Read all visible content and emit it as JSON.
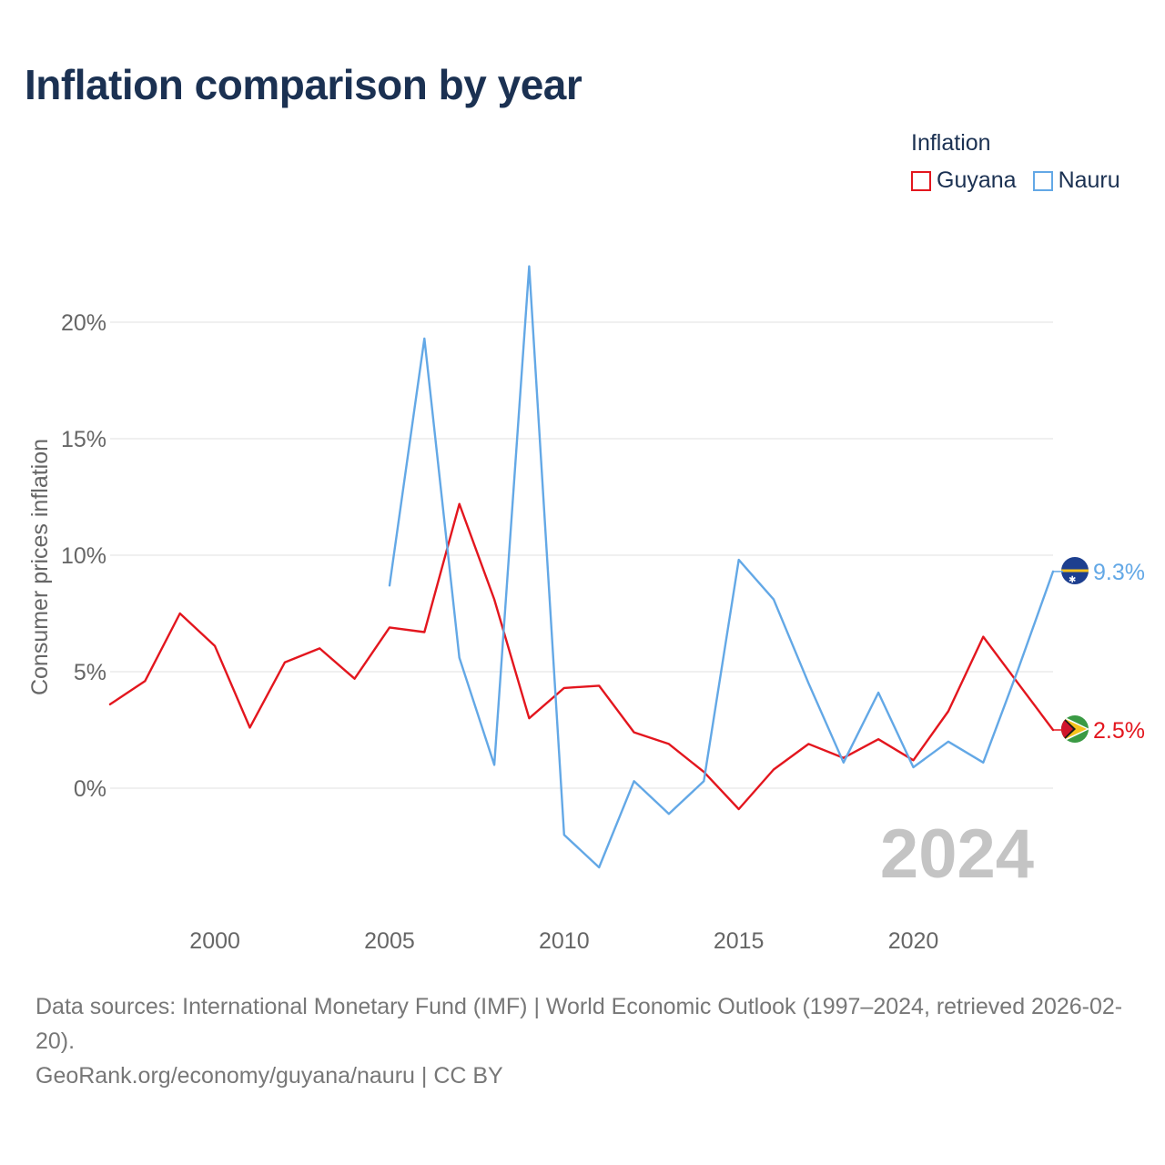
{
  "title": "Inflation comparison by year",
  "legend": {
    "title": "Inflation",
    "items": [
      {
        "label": "Guyana",
        "color": "#e3161e"
      },
      {
        "label": "Nauru",
        "color": "#63a8e6"
      }
    ]
  },
  "footer": {
    "sources": "Data sources: International Monetary Fund (IMF) | World Economic Outlook (1997–2024, retrieved 2026-02-20).",
    "credit": "GeoRank.org/economy/guyana/nauru | CC BY"
  },
  "chart_data": {
    "type": "line",
    "title": "Inflation comparison by year",
    "xlabel": "",
    "ylabel": "Consumer prices inflation",
    "xlim": [
      1997,
      2024
    ],
    "ylim": [
      -5,
      25
    ],
    "grid": true,
    "legend_position": "top-right",
    "x_ticks": [
      2000,
      2005,
      2010,
      2015,
      2020
    ],
    "x_tick_labels": [
      "2000",
      "2005",
      "2010",
      "2015",
      "2020"
    ],
    "y_ticks": [
      0,
      5,
      10,
      15,
      20
    ],
    "y_tick_labels": [
      "0%",
      "5%",
      "10%",
      "15%",
      "20%"
    ],
    "year_watermark": "2024",
    "series": [
      {
        "name": "Guyana",
        "color": "#e3161e",
        "end_label": "2.5%",
        "x": [
          1997,
          1998,
          1999,
          2000,
          2001,
          2002,
          2003,
          2004,
          2005,
          2006,
          2007,
          2008,
          2009,
          2010,
          2011,
          2012,
          2013,
          2014,
          2015,
          2016,
          2017,
          2018,
          2019,
          2020,
          2021,
          2022,
          2023,
          2024
        ],
        "values": [
          3.6,
          4.6,
          7.5,
          6.1,
          2.6,
          5.4,
          6.0,
          4.7,
          6.9,
          6.7,
          12.2,
          8.1,
          3.0,
          4.3,
          4.4,
          2.4,
          1.9,
          0.7,
          -0.9,
          0.8,
          1.9,
          1.3,
          2.1,
          1.2,
          3.3,
          6.5,
          4.5,
          2.5
        ]
      },
      {
        "name": "Nauru",
        "color": "#63a8e6",
        "end_label": "9.3%",
        "x": [
          2005,
          2006,
          2007,
          2008,
          2009,
          2010,
          2011,
          2012,
          2013,
          2014,
          2015,
          2016,
          2017,
          2018,
          2019,
          2020,
          2021,
          2022,
          2023,
          2024
        ],
        "values": [
          8.7,
          19.3,
          5.6,
          1.0,
          22.4,
          -2.0,
          -3.4,
          0.3,
          -1.1,
          0.3,
          9.8,
          8.1,
          4.5,
          1.1,
          4.1,
          0.9,
          2.0,
          1.1,
          5.1,
          9.3
        ]
      }
    ]
  }
}
